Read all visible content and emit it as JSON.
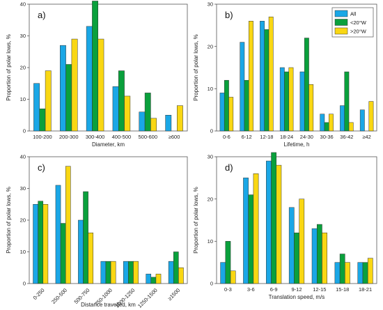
{
  "colors": {
    "All": "#1aa7e6",
    "<20°W": "#0aa03c",
    ">20°W": "#f9d713",
    "bar_stroke": "#333333"
  },
  "legend": {
    "entries": [
      "All",
      "<20°W",
      ">20°W"
    ],
    "placement": "top-right of panel b"
  },
  "chart_data": [
    {
      "type": "bar",
      "panel_label": "a)",
      "xlabel": "Diameter, km",
      "ylabel": "Proportion of polar lows, %",
      "ylim": [
        0,
        40
      ],
      "yticks": [
        0,
        10,
        20,
        30,
        40
      ],
      "categories": [
        "100-200",
        "200-300",
        "300-400",
        "400-500",
        "500-600",
        "≥600"
      ],
      "xtick_rotation": 0,
      "series": [
        {
          "name": "All",
          "values": [
            15,
            27,
            33,
            14,
            6,
            5
          ]
        },
        {
          "name": "<20°W",
          "values": [
            7,
            21,
            41,
            19,
            12,
            null
          ]
        },
        {
          "name": ">20°W",
          "values": [
            19,
            29,
            29,
            11,
            4,
            8
          ]
        }
      ]
    },
    {
      "type": "bar",
      "panel_label": "b)",
      "xlabel": "Lifetime, h",
      "ylabel": "Proportion of polar lows, %",
      "ylim": [
        0,
        30
      ],
      "yticks": [
        0,
        10,
        20,
        30
      ],
      "categories": [
        "0-6",
        "6-12",
        "12-18",
        "18-24",
        "24-30",
        "30-36",
        "36-42",
        "≥42"
      ],
      "xtick_rotation": 0,
      "legend": true,
      "series": [
        {
          "name": "All",
          "values": [
            9,
            21,
            26,
            15,
            14,
            4,
            6,
            5
          ]
        },
        {
          "name": "<20°W",
          "values": [
            12,
            12,
            24,
            14,
            22,
            2,
            14,
            null
          ]
        },
        {
          "name": ">20°W",
          "values": [
            8,
            26,
            27,
            15,
            11,
            4,
            2,
            7
          ]
        }
      ]
    },
    {
      "type": "bar",
      "panel_label": "c)",
      "xlabel": "Distance travelled, km",
      "ylabel": "Proportion of polar lows, %",
      "ylim": [
        0,
        40
      ],
      "yticks": [
        0,
        10,
        20,
        30,
        40
      ],
      "categories": [
        "0-250",
        "250-500",
        "500-750",
        "750-1000",
        "1000-1250",
        "1250-1500",
        "≥1500"
      ],
      "xtick_rotation": -45,
      "series": [
        {
          "name": "All",
          "values": [
            25,
            31,
            20,
            7,
            7,
            3,
            7
          ]
        },
        {
          "name": "<20°W",
          "values": [
            26,
            19,
            29,
            7,
            7,
            2,
            10
          ]
        },
        {
          "name": ">20°W",
          "values": [
            25,
            37,
            16,
            7,
            7,
            3,
            5
          ]
        }
      ]
    },
    {
      "type": "bar",
      "panel_label": "d)",
      "xlabel": "Translation speed, m/s",
      "ylabel": "Proportion of polar lows, %",
      "ylim": [
        0,
        30
      ],
      "yticks": [
        0,
        10,
        20,
        30
      ],
      "categories": [
        "0-3",
        "3-6",
        "6-9",
        "9-12",
        "12-15",
        "15-18",
        "18-21"
      ],
      "xtick_rotation": 0,
      "series": [
        {
          "name": "All",
          "values": [
            5,
            25,
            29,
            18,
            13,
            5,
            5
          ]
        },
        {
          "name": "<20°W",
          "values": [
            10,
            21,
            31,
            12,
            14,
            7,
            5
          ]
        },
        {
          "name": ">20°W",
          "values": [
            3,
            26,
            28,
            20,
            12,
            5,
            6
          ]
        }
      ]
    }
  ]
}
